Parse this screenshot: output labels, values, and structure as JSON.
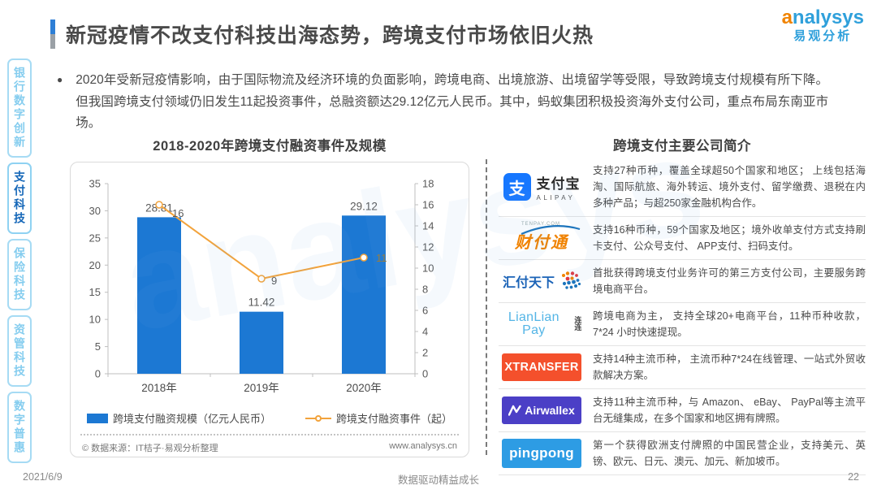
{
  "header": {
    "title": "新冠疫情不改支付科技出海态势，跨境支付市场依旧火热",
    "brand": {
      "en_first": "a",
      "en_rest": "nalysys",
      "cn": "易观分析"
    }
  },
  "watermark": "analysys",
  "sidebar": {
    "items": [
      {
        "label": "银行数字创新",
        "active": false
      },
      {
        "label": "支付科技",
        "active": true
      },
      {
        "label": "保险科技",
        "active": false
      },
      {
        "label": "资管科技",
        "active": false
      },
      {
        "label": "数字普惠",
        "active": false
      }
    ]
  },
  "intro": {
    "bullet": "●",
    "text": "2020年受新冠疫情影响，由于国际物流及经济环境的负面影响，跨境电商、出境旅游、出境留学等受限，导致跨境支付规模有所下降。但我国跨境支付领域仍旧发生11起投资事件，总融资额达29.12亿元人民币。其中，蚂蚁集团积极投资海外支付公司，重点布局东南亚市场。"
  },
  "chart_section": {
    "source": "© 数据来源：IT桔子·易观分析整理",
    "website": "www.analysys.cn"
  },
  "chart_data": {
    "type": "bar+line",
    "title": "2018-2020年跨境支付融资事件及规模",
    "categories": [
      "2018年",
      "2019年",
      "2020年"
    ],
    "series": [
      {
        "name": "跨境支付融资规模（亿元人民币）",
        "type": "bar",
        "axis": "left",
        "values": [
          28.81,
          11.42,
          29.12
        ],
        "color": "#1C78D3"
      },
      {
        "name": "跨境支付融资事件（起）",
        "type": "line",
        "axis": "right",
        "values": [
          16,
          9,
          11
        ],
        "color": "#F2A33C"
      }
    ],
    "left_axis": {
      "min": 0,
      "max": 35,
      "step": 5
    },
    "right_axis": {
      "min": 0,
      "max": 18,
      "step": 2
    },
    "grid": false,
    "legend_position": "bottom"
  },
  "companies": {
    "title": "跨境支付主要公司简介",
    "rows": [
      {
        "name": "支付宝",
        "logo": {
          "square_glyph": "支",
          "cn": "支付宝",
          "en": "ALIPAY"
        },
        "desc": "支持27种币种，覆盖全球超50个国家和地区； 上线包括海淘、国际航旅、海外转运、境外支付、留学缴费、退税在内多种产品；与超250家金融机构合作。"
      },
      {
        "name": "财付通",
        "logo": {
          "small": "TENPAY.COM",
          "text": "财付通"
        },
        "desc": "支持16种币种，59个国家及地区；境外收单支付方式支持刷卡支付、公众号支付、 APP支付、扫码支付。"
      },
      {
        "name": "汇付天下",
        "logo": {
          "text": "汇付天下"
        },
        "desc": "首批获得跨境支付业务许可的第三方支付公司，主要服务跨境电商平台。"
      },
      {
        "name": "LianLian Pay",
        "logo": {
          "text": "LianLian Pay",
          "cn": "连连"
        },
        "desc": "跨境电商为主， 支持全球20+电商平台，11种币种收款，7*24 小时快速提现。"
      },
      {
        "name": "XTRANSFER",
        "logo": {
          "text": "XTRANSFER"
        },
        "desc": "支持14种主流币种， 主流币种7*24在线管理、一站式外贸收款解决方案。"
      },
      {
        "name": "Airwallex",
        "logo": {
          "text": "Airwallex"
        },
        "desc": "支持11种主流币种，与 Amazon、 eBay、 PayPal等主流平台无缝集成，在多个国家和地区拥有牌照。"
      },
      {
        "name": "pingpong",
        "logo": {
          "text": "pingpong"
        },
        "desc": "第一个获得欧洲支付牌照的中国民营企业，支持美元、英镑、欧元、日元、澳元、加元、新加坡币。"
      }
    ]
  },
  "footer": {
    "date": "2021/6/9",
    "slogan": "数据驱动精益成长",
    "page": "22"
  },
  "colors": {
    "bar_blue": "#1C78D3",
    "line_orange": "#F2A33C",
    "brand_blue": "#2FA0DB",
    "brand_orange": "#F08300",
    "alipay_blue": "#1677FF",
    "tenpay_orange": "#F08200",
    "huifu_blue": "#1B63B7",
    "lianlian_blue": "#54B5E6",
    "xtransfer_red": "#F4502C",
    "airwallex_purple": "#4B3FC6",
    "pingpong_blue": "#2D9CE4",
    "sidebar_active": "#1567B8",
    "sidebar_inactive": "#85CDEF"
  }
}
